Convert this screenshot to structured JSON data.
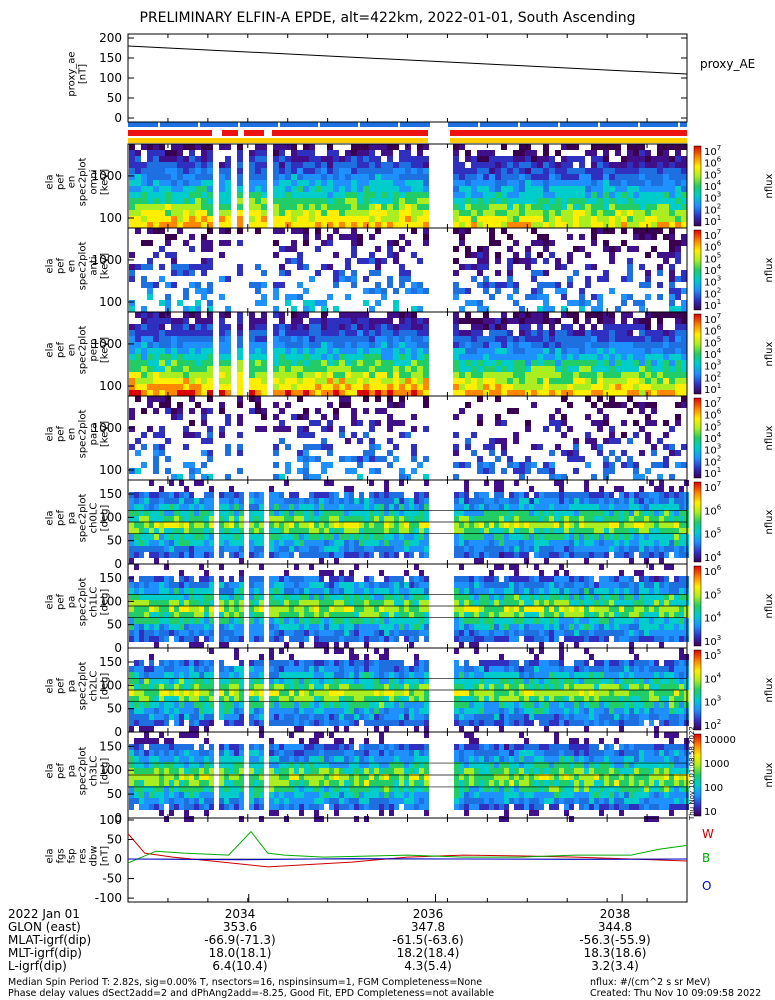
{
  "title": "PRELIMINARY ELFIN-A EPDE, alt=422km, 2022-01-01, South Ascending",
  "colors": {
    "blue_bar": "#1e6fe0",
    "red_bar": "#ee1111",
    "yellow_bar": "#ffcc00",
    "proxy_line": "#000000",
    "bw_W": "#cc0000",
    "bw_B": "#00aa00",
    "bw_O": "#0000cc"
  },
  "chart_data": [
    {
      "type": "line",
      "panel": "proxy_ae",
      "ylabel": [
        "proxy_ae",
        "[nT]"
      ],
      "yticks": [
        "200",
        "150",
        "100",
        "50",
        "0"
      ],
      "ylim": [
        -10,
        210
      ],
      "series": [
        {
          "name": "proxy_AE",
          "x": [
            0,
            1
          ],
          "values": [
            180,
            110
          ]
        }
      ]
    },
    {
      "type": "heatmap",
      "panel": "energy_spectrogram_1",
      "ylabel": [
        "ela",
        "pef",
        "en",
        "spec2plot",
        "omni",
        "[keV]"
      ],
      "yticks": [
        "1000",
        "100"
      ],
      "ylog": true,
      "zlabel": "nflux",
      "zticks": [
        "10",
        "10",
        "10",
        "10",
        "10",
        "10",
        "10"
      ],
      "zexponents": [
        "7",
        "6",
        "5",
        "4",
        "3",
        "2",
        "1"
      ]
    },
    {
      "type": "heatmap",
      "panel": "energy_spectrogram_2",
      "ylabel": [
        "ela",
        "pef",
        "en",
        "spec2plot",
        "anti",
        "[keV]"
      ],
      "yticks": [
        "1000",
        "100"
      ],
      "ylog": true,
      "zlabel": "nflux",
      "zticks": [
        "10",
        "10",
        "10",
        "10",
        "10",
        "10",
        "10"
      ],
      "zexponents": [
        "7",
        "6",
        "5",
        "4",
        "3",
        "2",
        "1"
      ]
    },
    {
      "type": "heatmap",
      "panel": "energy_spectrogram_3",
      "ylabel": [
        "ela",
        "pef",
        "en",
        "spec2plot",
        "perp",
        "[keV]"
      ],
      "yticks": [
        "1000",
        "100"
      ],
      "ylog": true,
      "zlabel": "nflux",
      "zticks": [
        "10",
        "10",
        "10",
        "10",
        "10",
        "10",
        "10"
      ],
      "zexponents": [
        "7",
        "6",
        "5",
        "4",
        "3",
        "2",
        "1"
      ]
    },
    {
      "type": "heatmap",
      "panel": "energy_spectrogram_4",
      "ylabel": [
        "ela",
        "pef",
        "en",
        "spec2plot",
        "para",
        "[keV]"
      ],
      "yticks": [
        "1000",
        "100"
      ],
      "ylog": true,
      "zlabel": "nflux",
      "zticks": [
        "10",
        "10",
        "10",
        "10",
        "10",
        "10",
        "10"
      ],
      "zexponents": [
        "7",
        "6",
        "5",
        "4",
        "3",
        "2",
        "1"
      ]
    },
    {
      "type": "heatmap",
      "panel": "pitch_angle_ch0",
      "ylabel": [
        "ela",
        "pef",
        "pa",
        "spec2plot",
        "ch0LC",
        "[deg]"
      ],
      "yticks": [
        "150",
        "100",
        "50",
        "0"
      ],
      "ylim": [
        0,
        180
      ],
      "zlabel": "nflux",
      "zticks": [
        "10",
        "10",
        "10",
        "10"
      ],
      "zexponents": [
        "7",
        "6",
        "5",
        "4"
      ]
    },
    {
      "type": "heatmap",
      "panel": "pitch_angle_ch1",
      "ylabel": [
        "ela",
        "pef",
        "pa",
        "spec2plot",
        "ch1LC",
        "[deg]"
      ],
      "yticks": [
        "150",
        "100",
        "50",
        "0"
      ],
      "ylim": [
        0,
        180
      ],
      "zlabel": "nflux",
      "zticks": [
        "10",
        "10",
        "10",
        "10"
      ],
      "zexponents": [
        "6",
        "5",
        "4",
        "3"
      ]
    },
    {
      "type": "heatmap",
      "panel": "pitch_angle_ch2",
      "ylabel": [
        "ela",
        "pef",
        "pa",
        "spec2plot",
        "ch2LC",
        "[deg]"
      ],
      "yticks": [
        "150",
        "100",
        "50",
        "0"
      ],
      "ylim": [
        0,
        180
      ],
      "zlabel": "nflux",
      "zticks": [
        "10",
        "10",
        "10",
        "10"
      ],
      "zexponents": [
        "5",
        "4",
        "3",
        "2"
      ]
    },
    {
      "type": "heatmap",
      "panel": "pitch_angle_ch3",
      "ylabel": [
        "ela",
        "pef",
        "pa",
        "spec2plot",
        "ch3LC",
        "[deg]"
      ],
      "yticks": [
        "150",
        "100",
        "50",
        "0"
      ],
      "ylim": [
        0,
        180
      ],
      "zlabel": "nflux",
      "zticks": [
        "10000",
        "1000",
        "100",
        "10"
      ],
      "zexponents": [
        "",
        "",
        "",
        ""
      ]
    },
    {
      "type": "line",
      "panel": "fgs_dbw",
      "ylabel": [
        "ela",
        "fgs",
        "fsp",
        "res",
        "dbw",
        "[nT]"
      ],
      "yticks": [
        "100",
        "50",
        "0",
        "-50",
        "-100"
      ],
      "ylim": [
        -110,
        105
      ],
      "series": [
        {
          "name": "W",
          "x": [
            0,
            0.03,
            0.08,
            0.15,
            0.25,
            0.4,
            0.5,
            0.6,
            0.7,
            0.8,
            0.9,
            1.0
          ],
          "values": [
            65,
            15,
            5,
            -5,
            -20,
            -8,
            5,
            10,
            8,
            5,
            0,
            -5
          ]
        },
        {
          "name": "B",
          "x": [
            0,
            0.05,
            0.1,
            0.18,
            0.22,
            0.25,
            0.28,
            0.35,
            0.5,
            0.6,
            0.7,
            0.8,
            0.9,
            0.95,
            1.0
          ],
          "values": [
            -10,
            20,
            15,
            10,
            70,
            15,
            10,
            5,
            10,
            5,
            5,
            10,
            10,
            25,
            35
          ]
        },
        {
          "name": "O",
          "x": [
            0,
            0.2,
            0.4,
            0.6,
            0.8,
            1.0
          ],
          "values": [
            0,
            -2,
            1,
            0,
            -1,
            0
          ]
        }
      ],
      "legend": [
        "W",
        "B",
        "O"
      ]
    }
  ],
  "xaxis": {
    "date_label": "2022 Jan 01",
    "ticks": [
      "2034",
      "2036",
      "2038"
    ]
  },
  "ephemeris": {
    "rows": [
      "GLON (east)",
      "MLAT-igrf(dip)",
      "MLT-igrf(dip)",
      "L-igrf(dip)"
    ],
    "col1": [
      "353.6",
      "-66.9(-71.3)",
      "18.0(18.1)",
      "6.4(10.4)"
    ],
    "col2": [
      "347.8",
      "-61.5(-63.6)",
      "18.2(18.4)",
      "4.3(5.4)"
    ],
    "col3": [
      "344.8",
      "-56.3(-55.9)",
      "18.3(18.6)",
      "3.2(3.4)"
    ]
  },
  "footer": {
    "line1": "Median Spin Period T: 2.82s, sig=0.00% T, nsectors=16, nspinsinsum=1, FGM Completeness=None",
    "line2": "Phase delay values dSect2add=2 and dPhAng2add=-8.25, Good Fit, EPD Completeness=not available",
    "units": "nflux: #/(cm^2 s sr MeV)",
    "created": "Created: Thu Nov 10 09:09:58 2022",
    "stamp": "Thu Nov 10 01:08:58 2022"
  }
}
